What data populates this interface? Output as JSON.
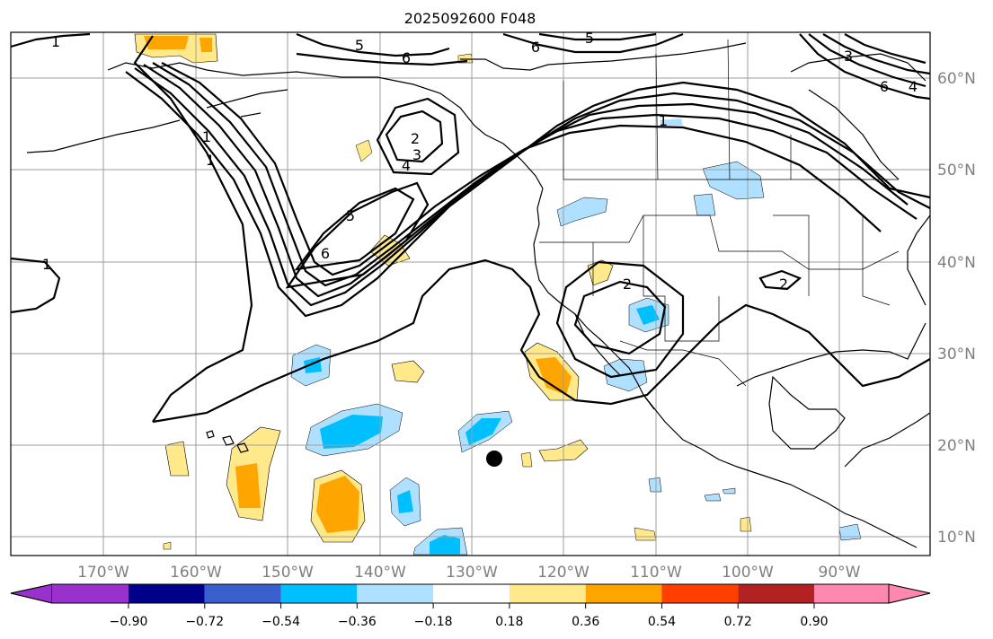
{
  "title": "2025092600 F048",
  "lon_labels": [
    "170°W",
    "160°W",
    "150°W",
    "140°W",
    "130°W",
    "120°W",
    "110°W",
    "100°W",
    "90°W"
  ],
  "lat_labels": [
    "60°N",
    "50°N",
    "40°N",
    "30°N",
    "20°N",
    "10°N"
  ],
  "colorbar": {
    "tick_labels": [
      "−0.90",
      "−0.72",
      "−0.54",
      "−0.36",
      "−0.18",
      "0.18",
      "0.36",
      "0.54",
      "0.72",
      "0.90"
    ],
    "colors": [
      "#9932cc",
      "#00008b",
      "#3a5fcd",
      "#00bfff",
      "#b0e0ff",
      "#ffffff",
      "#ffe98a",
      "#ffa500",
      "#ff3f00",
      "#b22222",
      "#ff88b0"
    ]
  },
  "contour_labels": {
    "c1a": "1",
    "c5a": "5",
    "c6a": "6",
    "c6b": "6",
    "c5b": "5",
    "c3a": "3",
    "c4a": "4",
    "c6c": "6",
    "c1b": "1",
    "c1c": "1",
    "c1d": "1",
    "c2a": "2",
    "c3b": "3",
    "c4b": "4",
    "c5c": "5",
    "c6d": "6",
    "c2b": "2",
    "c2c": "2",
    "c1e": "1"
  },
  "marker": "black-dot",
  "shading": {
    "positive": "#ffe98a / #ffa500",
    "negative": "#b0e0ff / #00bfff"
  }
}
